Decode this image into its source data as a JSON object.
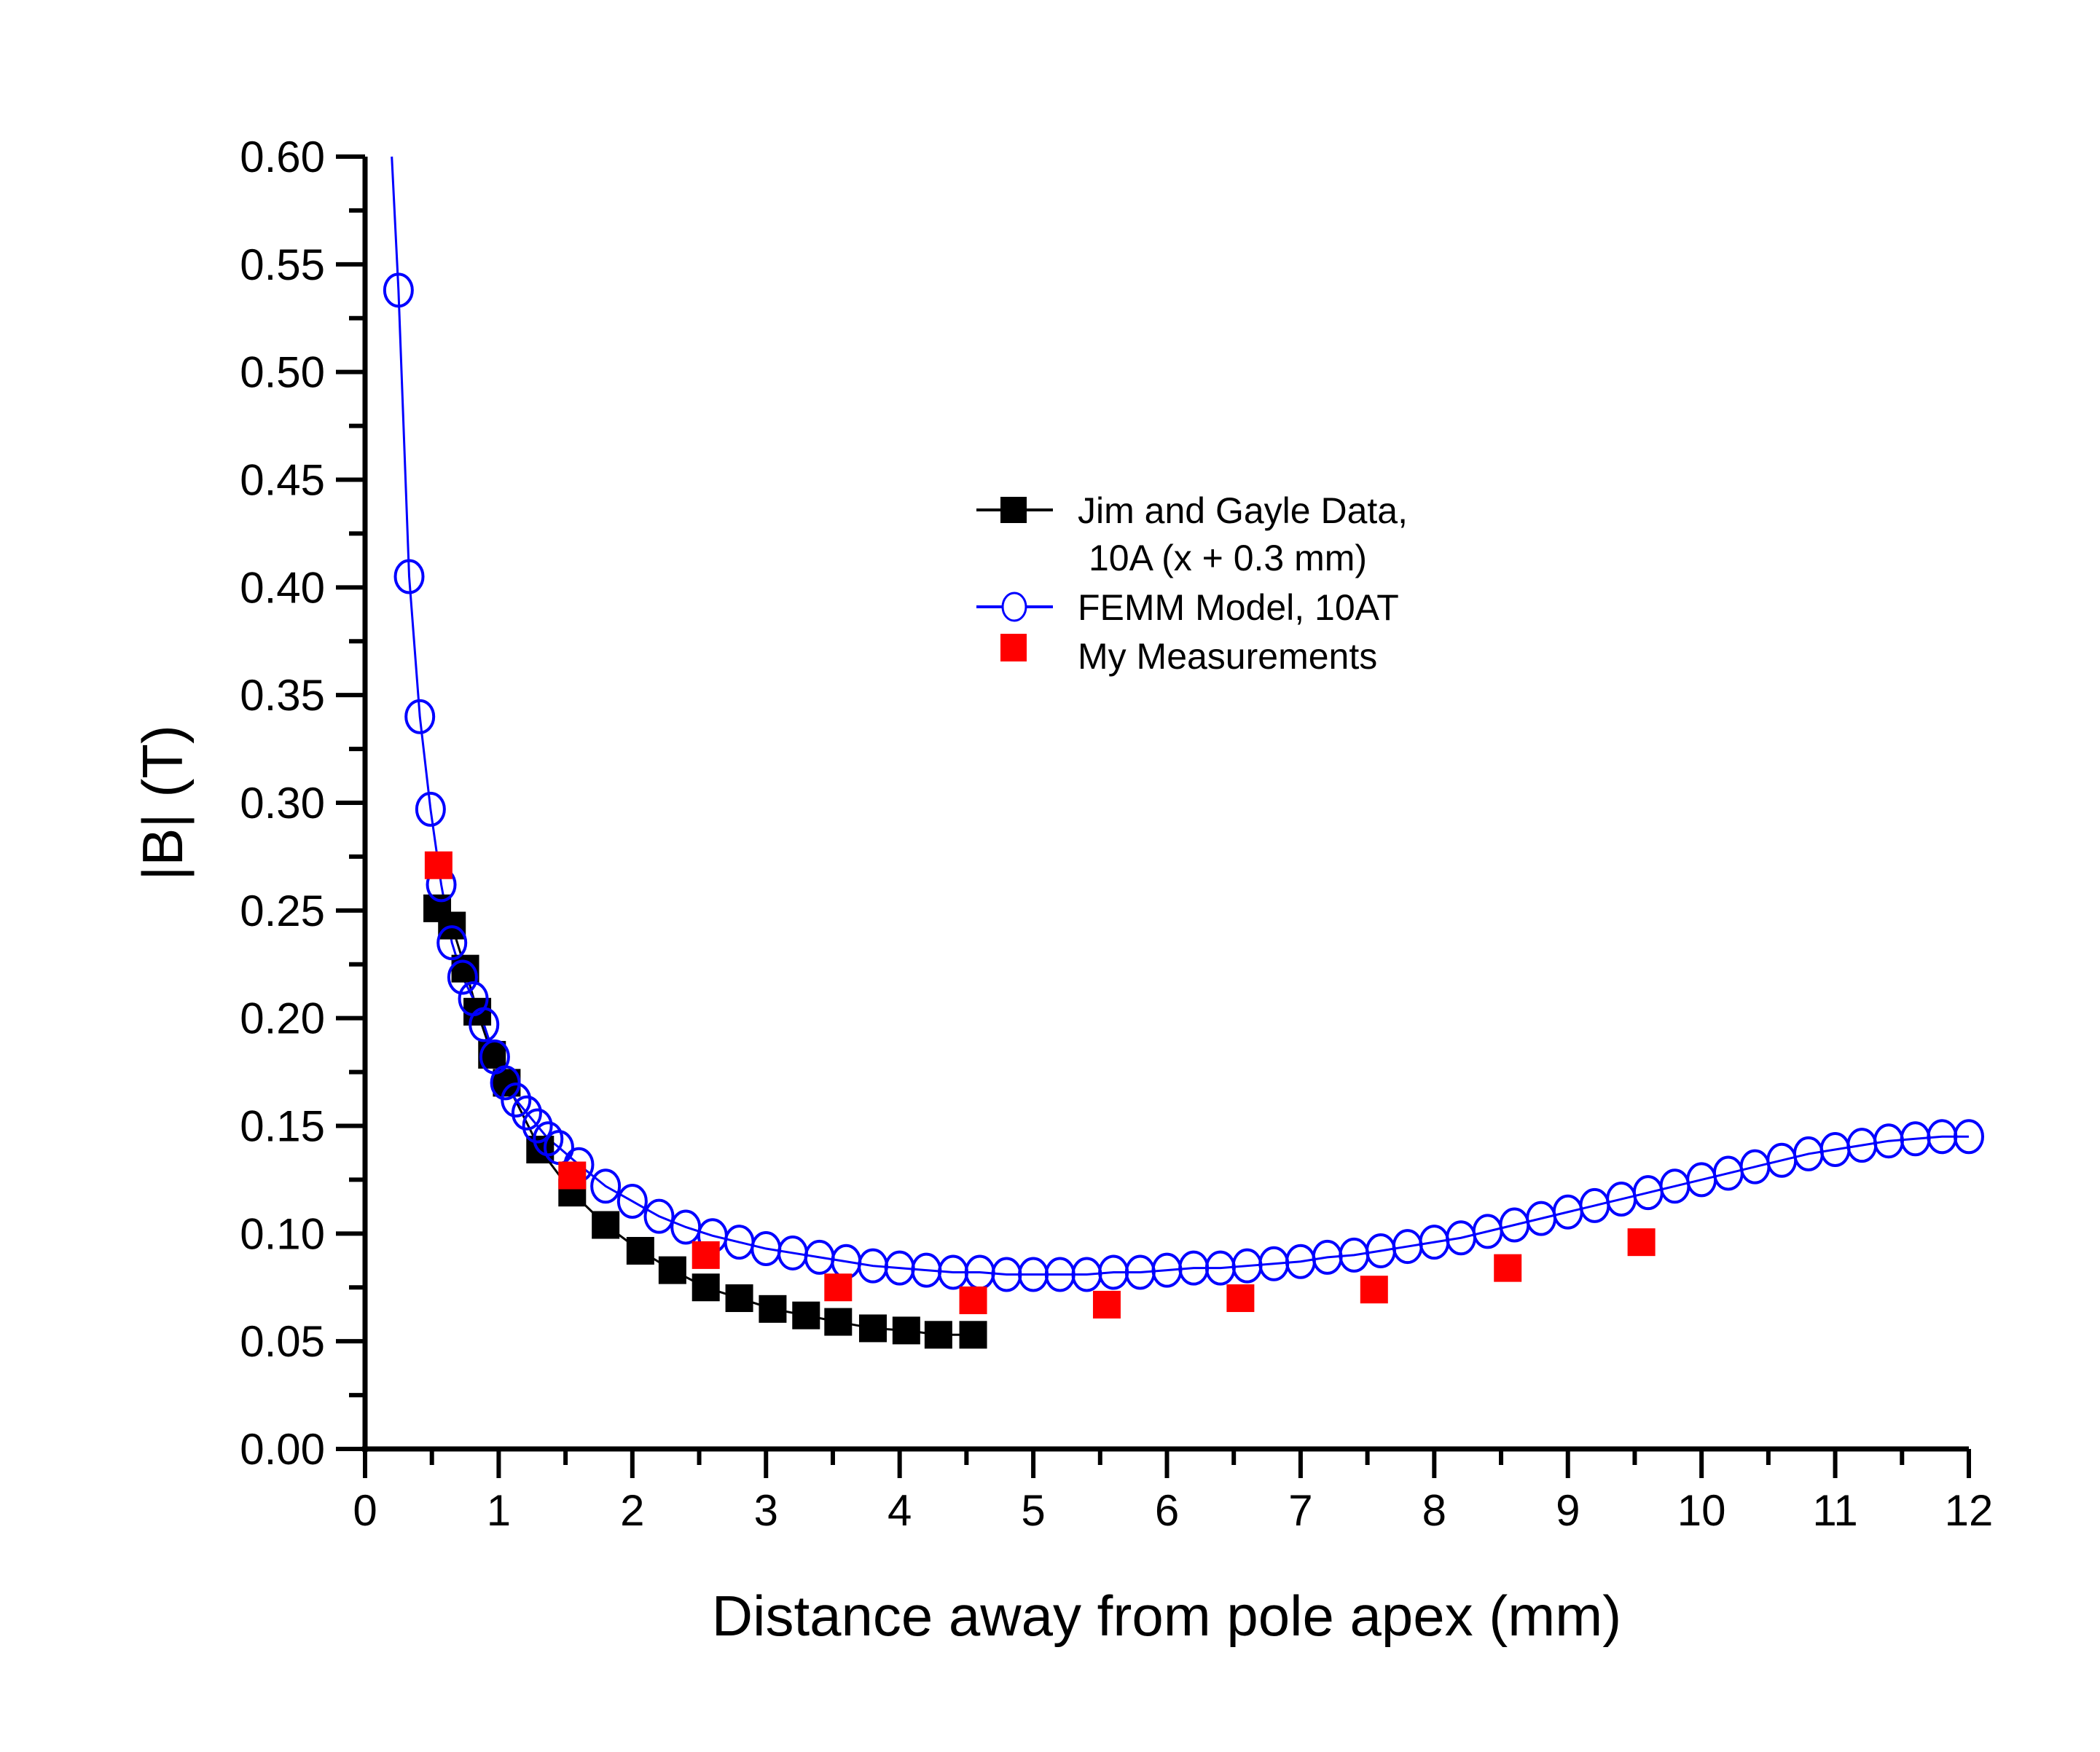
{
  "chart_data": {
    "type": "scatter",
    "title": "",
    "xlabel": "Distance away from pole apex (mm)",
    "ylabel": "|B| (T)",
    "xlim": [
      0,
      12
    ],
    "ylim": [
      0,
      0.6
    ],
    "x_ticks": [
      "0",
      "1",
      "2",
      "3",
      "4",
      "5",
      "6",
      "7",
      "8",
      "9",
      "10",
      "11",
      "12"
    ],
    "y_ticks": [
      "0.00",
      "0.05",
      "0.10",
      "0.15",
      "0.20",
      "0.25",
      "0.30",
      "0.35",
      "0.40",
      "0.45",
      "0.50",
      "0.55",
      "0.60"
    ],
    "grid": false,
    "legend_position": "upper-center",
    "series": [
      {
        "name": "Jim and Gayle Data,",
        "name_line2": "10A (x + 0.3 mm)",
        "marker": "filled-square",
        "color": "#000000",
        "x": [
          0.54,
          0.65,
          0.75,
          0.84,
          0.95,
          1.06,
          1.31,
          1.55,
          1.8,
          2.06,
          2.3,
          2.55,
          2.8,
          3.05,
          3.3,
          3.54,
          3.8,
          4.05,
          4.29,
          4.55
        ],
        "y": [
          0.251,
          0.243,
          0.223,
          0.203,
          0.183,
          0.17,
          0.139,
          0.119,
          0.104,
          0.092,
          0.083,
          0.075,
          0.07,
          0.065,
          0.062,
          0.059,
          0.056,
          0.055,
          0.053,
          0.053
        ]
      },
      {
        "name": "FEMM Model, 10AT",
        "marker": "open-circle-line",
        "color": "#0000ff",
        "x": [
          0.2,
          0.25,
          0.33,
          0.41,
          0.49,
          0.57,
          0.65,
          0.73,
          0.81,
          0.89,
          0.97,
          1.05,
          1.13,
          1.21,
          1.29,
          1.37,
          1.45,
          1.6,
          1.8,
          2.0,
          2.2,
          2.4,
          2.6,
          2.8,
          3.0,
          3.2,
          3.4,
          3.6,
          3.8,
          4.0,
          4.2,
          4.4,
          4.6,
          4.8,
          5.0,
          5.2,
          5.4,
          5.6,
          5.8,
          6.0,
          6.2,
          6.4,
          6.6,
          6.8,
          7.0,
          7.2,
          7.4,
          7.6,
          7.8,
          8.0,
          8.2,
          8.4,
          8.6,
          8.8,
          9.0,
          9.2,
          9.4,
          9.6,
          9.8,
          10.0,
          10.2,
          10.4,
          10.6,
          10.8,
          11.0,
          11.2,
          11.4,
          11.6,
          11.8,
          12.0
        ],
        "y": [
          0.6,
          0.538,
          0.405,
          0.34,
          0.297,
          0.262,
          0.235,
          0.219,
          0.209,
          0.197,
          0.182,
          0.17,
          0.162,
          0.156,
          0.15,
          0.144,
          0.14,
          0.132,
          0.122,
          0.115,
          0.108,
          0.103,
          0.099,
          0.096,
          0.093,
          0.091,
          0.089,
          0.087,
          0.085,
          0.084,
          0.083,
          0.082,
          0.082,
          0.081,
          0.081,
          0.081,
          0.081,
          0.082,
          0.082,
          0.083,
          0.084,
          0.084,
          0.085,
          0.086,
          0.087,
          0.089,
          0.09,
          0.092,
          0.094,
          0.096,
          0.098,
          0.101,
          0.104,
          0.107,
          0.11,
          0.113,
          0.116,
          0.119,
          0.122,
          0.125,
          0.128,
          0.131,
          0.134,
          0.137,
          0.139,
          0.141,
          0.143,
          0.144,
          0.145,
          0.145
        ]
      },
      {
        "name": "My Measurements",
        "marker": "filled-square",
        "color": "#ff0000",
        "x": [
          0.55,
          1.55,
          2.55,
          3.54,
          4.55,
          5.55,
          6.55,
          7.55,
          8.55,
          9.55
        ],
        "y": [
          0.271,
          0.127,
          0.09,
          0.075,
          0.069,
          0.067,
          0.07,
          0.074,
          0.084,
          0.096
        ]
      }
    ]
  }
}
